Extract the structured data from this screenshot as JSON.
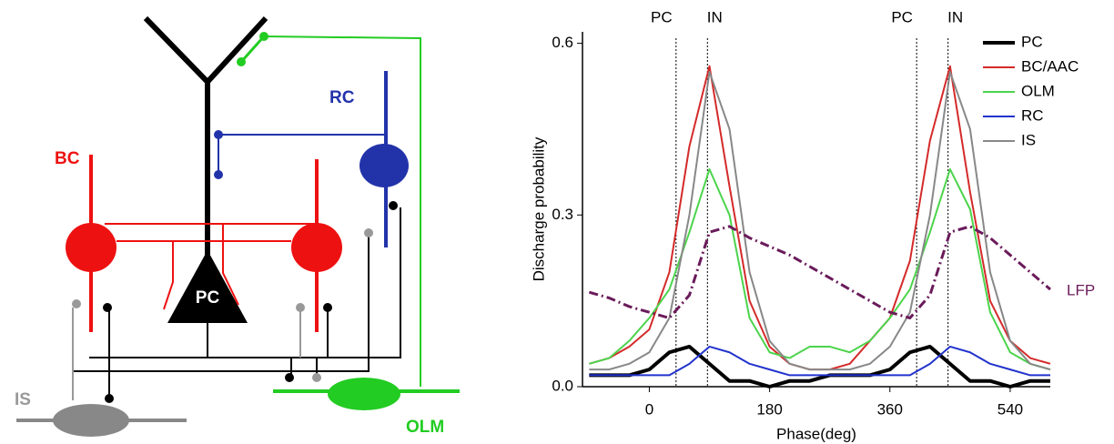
{
  "diagram": {
    "labels": [
      "RC",
      "BC",
      "PC",
      "IS",
      "OLM"
    ]
  },
  "chart_data": {
    "type": "line",
    "xlabel": "Phase(deg)",
    "ylabel": "Discharge probability",
    "x": [
      -90,
      -60,
      -30,
      0,
      30,
      60,
      90,
      120,
      150,
      180,
      210,
      240,
      270,
      300,
      330,
      360,
      390,
      420,
      450,
      480,
      510,
      540,
      570,
      600
    ],
    "series": [
      {
        "name": "PC",
        "color": "#000000",
        "values": [
          0.02,
          0.02,
          0.02,
          0.03,
          0.06,
          0.07,
          0.04,
          0.01,
          0.01,
          0.0,
          0.01,
          0.01,
          0.02,
          0.02,
          0.02,
          0.03,
          0.06,
          0.07,
          0.04,
          0.01,
          0.01,
          0.0,
          0.01,
          0.01
        ]
      },
      {
        "name": "BC/AAC",
        "color": "#d42a2a",
        "values": [
          0.04,
          0.05,
          0.07,
          0.1,
          0.2,
          0.42,
          0.56,
          0.35,
          0.15,
          0.07,
          0.04,
          0.03,
          0.03,
          0.04,
          0.08,
          0.12,
          0.22,
          0.43,
          0.56,
          0.34,
          0.15,
          0.08,
          0.05,
          0.04
        ]
      },
      {
        "name": "OLM",
        "color": "#4cd44c",
        "values": [
          0.04,
          0.05,
          0.08,
          0.12,
          0.17,
          0.27,
          0.38,
          0.3,
          0.12,
          0.06,
          0.05,
          0.07,
          0.07,
          0.06,
          0.08,
          0.12,
          0.17,
          0.27,
          0.38,
          0.31,
          0.13,
          0.06,
          0.04,
          0.03
        ]
      },
      {
        "name": "RC",
        "color": "#2233cc",
        "values": [
          0.02,
          0.02,
          0.02,
          0.02,
          0.02,
          0.04,
          0.07,
          0.06,
          0.04,
          0.03,
          0.02,
          0.02,
          0.02,
          0.02,
          0.02,
          0.02,
          0.02,
          0.04,
          0.07,
          0.06,
          0.04,
          0.03,
          0.02,
          0.02
        ]
      },
      {
        "name": "IS",
        "color": "#888888",
        "values": [
          0.03,
          0.03,
          0.04,
          0.06,
          0.12,
          0.3,
          0.55,
          0.45,
          0.2,
          0.08,
          0.04,
          0.03,
          0.03,
          0.03,
          0.04,
          0.07,
          0.13,
          0.3,
          0.55,
          0.45,
          0.2,
          0.08,
          0.04,
          0.03
        ]
      }
    ],
    "lfp": {
      "name": "LFP",
      "color": "#6a1b5a",
      "values": [
        0.165,
        0.155,
        0.14,
        0.13,
        0.12,
        0.16,
        0.27,
        0.28,
        0.26,
        0.245,
        0.23,
        0.21,
        0.19,
        0.17,
        0.15,
        0.13,
        0.12,
        0.16,
        0.27,
        0.28,
        0.26,
        0.23,
        0.2,
        0.17
      ]
    },
    "vlines": [
      40,
      87,
      400,
      447
    ],
    "vline_labels": [
      "PC",
      "IN",
      "PC",
      "IN"
    ],
    "xlim": [
      -100,
      600
    ],
    "xticks": [
      0,
      180,
      360,
      540
    ],
    "ylim": [
      0,
      0.62
    ],
    "yticks": [
      {
        "value": 0,
        "label": "0.0"
      },
      0.3,
      0.6
    ]
  }
}
